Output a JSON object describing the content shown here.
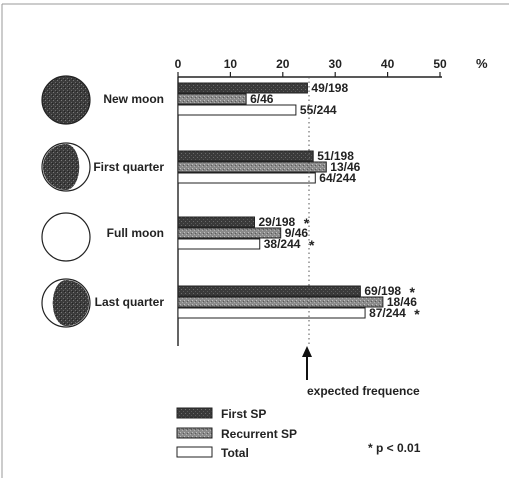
{
  "chart_data": {
    "type": "bar",
    "orientation": "horizontal",
    "unit": "%",
    "xlim": [
      0,
      50
    ],
    "xticks": [
      0,
      10,
      20,
      30,
      40,
      50
    ],
    "reference_line": {
      "value": 25,
      "label": "expected frequence"
    },
    "categories": [
      "New moon",
      "First quarter",
      "Full moon",
      "Last quarter"
    ],
    "series": [
      {
        "name": "First SP",
        "color": "#3a3a3a",
        "values": [
          24.7,
          25.8,
          14.6,
          34.8
        ],
        "labels": [
          "49/198",
          "51/198",
          "29/198",
          "69/198"
        ],
        "significant": [
          false,
          false,
          true,
          true
        ]
      },
      {
        "name": "Recurrent SP",
        "color": "#8a8a8a",
        "values": [
          13.0,
          28.3,
          19.6,
          39.1
        ],
        "labels": [
          "6/46",
          "13/46",
          "9/46",
          "18/46"
        ],
        "significant": [
          false,
          false,
          false,
          false
        ]
      },
      {
        "name": "Total",
        "color": "#ffffff",
        "values": [
          22.5,
          26.2,
          15.6,
          35.7
        ],
        "labels": [
          "55/244",
          "64/244",
          "38/244",
          "87/244"
        ],
        "significant": [
          false,
          false,
          true,
          true
        ]
      }
    ],
    "significance_note": "* p < 0.01",
    "grid": false,
    "legend_position": "bottom-left"
  }
}
